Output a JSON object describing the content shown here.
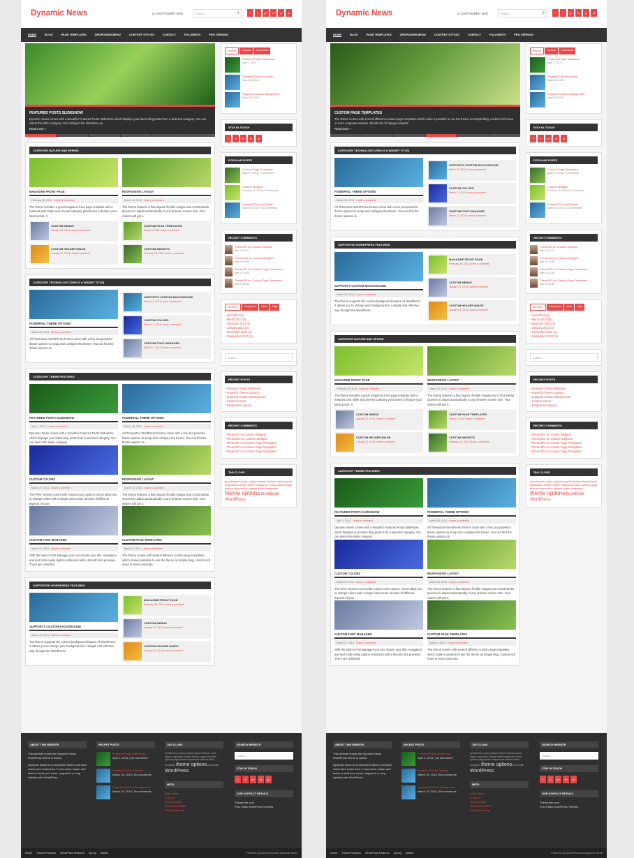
{
  "site": {
    "title": "Dynamic News",
    "tagline": "a cool header text",
    "search_placeholder": "Search ..."
  },
  "social": [
    "f",
    "t",
    "g+",
    "in",
    "p",
    "yt"
  ],
  "nav": [
    "HOME",
    "BLOG",
    "PAGE TEMPLATES",
    "DROPDOWN MENU",
    "CONTENT STYLES",
    "CONTACT",
    "FULLWIDTH",
    "PRO VERSION"
  ],
  "colors": {
    "accent": "#e84747",
    "dark": "#333333"
  },
  "meta_date": "March 31, 2014",
  "leave": "Leave a comment",
  "left": {
    "slider": {
      "title": "FEATURED POSTS SLIDESHOW",
      "text": "Dynamic News comes with a beautiful Featured Posts Slideshow which displays your latest blog posts from a selected category. You can select the slider category and configure the slideshow as",
      "more": "Read more »"
    },
    "cat1": {
      "title": "CATEGORY NATURE AND SPRING",
      "a": {
        "title": "MAGAZINE FRONT PAGE",
        "date": "February 28, 2014",
        "text": "The theme includes a great magazine front page template with a featured post slider and several category post boxes to feature your latest posts. It"
      },
      "b": {
        "title": "RESPONSIVE LAYOUT",
        "date": "March 31, 2014",
        "text": "The theme features a fluid layout, flexible images and CSS3 Media Queries to adjust automatically to any browser screen size. Your visitors will get a"
      },
      "small": [
        {
          "t": "CUSTOM MENUS",
          "d": "January 22, 2014"
        },
        {
          "t": "CUSTOM PAGE TEMPLATES",
          "d": "March 4, 2014"
        },
        {
          "t": "CUSTOM HEADER IMAGE",
          "d": "January 21, 2014"
        },
        {
          "t": "CUSTOM WIDGETS",
          "d": "February 16, 2014"
        }
      ]
    },
    "cat2": {
      "title": "CATEGORY TECHNOLOGY (THIS IS A WIDGET TITLE)",
      "a": {
        "title": "POWERFUL THEME OPTIONS",
        "date": "March 28, 2014",
        "text": "All ThemeZee WordPress themes come with a few, but powerful theme options to setup and configure the theme. You can find the theme options on"
      },
      "small": [
        {
          "t": "SUPPORTS CUSTOM BACKGROUND",
          "d": "March 19, 2014"
        },
        {
          "t": "CUSTOM COLORS",
          "d": "March 17, 2014"
        },
        {
          "t": "CUSTOM FONT MANAGER",
          "d": "March 11, 2014"
        }
      ]
    },
    "cat3": {
      "title": "CATEGORY THEME FEATURES",
      "rows": [
        [
          {
            "title": "FEATURED POSTS SLIDESHOW",
            "date": "April 1, 2014",
            "text": "Dynamic News comes with a beautiful Featured Posts Slideshow which displays your latest blog posts from a selected category. You can select the slider category"
          },
          {
            "title": "POWERFUL THEME OPTIONS",
            "date": "March 28, 2014",
            "text": "All ThemeZee WordPress themes come with a few, but powerful theme options to setup and configure the theme. You can find the theme options on"
          }
        ],
        [
          {
            "title": "CUSTOM COLORS",
            "date": "March 17, 2014",
            "text": "The PRO version comes with custom color options, which allow you to change colors with a single color picker function of different aspects of your"
          },
          {
            "title": "RESPONSIVE LAYOUT",
            "date": "March 31, 2014",
            "text": "The theme features a fluid layout, flexible images and CSS3 Media Queries to adjust automatically to any browser screen size. Your visitors will get a"
          }
        ],
        [
          {
            "title": "CUSTOM FONT MANAGER",
            "date": "March 11, 2014",
            "text": "With the built-in Font Manager you can choose your title, navigation and text fonts easily (option enhanced with a smooth font preview). There are unlimited"
          },
          {
            "title": "CUSTOM PAGE TEMPLATES",
            "date": "March 4, 2014",
            "text": "The theme comes with several different custom page templates which make it possible to use the theme as simple blog, content-rich news or even corporate"
          }
        ]
      ]
    },
    "cat4": {
      "title": "SUPPORTED WORDPRESS FEATURES",
      "a": {
        "title": "SUPPORTS CUSTOM BACKGROUND",
        "date": "March 19, 2014",
        "text": "The theme supports the custom background feature of WordPress. It allows you to change your background in a simple and effective way through the WordPress"
      },
      "small": [
        {
          "t": "MAGAZINE FRONT PAGE",
          "d": "February 28, 2014"
        },
        {
          "t": "CUSTOM MENUS",
          "d": "January 22, 2014"
        },
        {
          "t": "CUSTOM HEADER IMAGE",
          "d": "January 21, 2014"
        }
      ]
    }
  },
  "sidebar": {
    "tabs": [
      "Recent",
      "Popular",
      "Comments"
    ],
    "recent": [
      {
        "t": "Featured Posts Slideshow",
        "d": "April 1, 2014"
      },
      {
        "t": "Powerful Theme Options",
        "d": "March 28, 2014"
      },
      {
        "t": "Supports Custom Background",
        "d": "March 19, 2014"
      }
    ],
    "stay": "STAY IN TOUCH",
    "popular_title": "POPULAR POSTS",
    "popular": [
      {
        "t": "Custom Page Templates",
        "d": "March 4, 2014",
        "c": "3 Comments"
      },
      {
        "t": "Custom Widgets",
        "d": "February 16, 2014",
        "c": "3 Comments"
      },
      {
        "t": "Powerful Theme Options",
        "d": "March 28, 2014",
        "c": "No Comments"
      }
    ],
    "rc_title": "RECENT COMMENTS",
    "rc": [
      {
        "a": "ThemeZR",
        "p": "Custom Widgets",
        "d": "Mar 24 13:47"
      },
      {
        "a": "ThemeZee",
        "p": "Custom Widgets",
        "d": "Mar 24 13:48"
      },
      {
        "a": "ThemeZR",
        "p": "Custom Page Templates",
        "d": "Mar 24 13:48"
      },
      {
        "a": "ThemeZR",
        "p": "Custom Page Templates",
        "d": "Mar 24 13:48"
      }
    ],
    "atabs": [
      "Archives",
      "Categories",
      "Meta",
      "Tags"
    ],
    "archives": [
      "April 2014 (1)",
      "March 2014 (6)",
      "February 2014 (3)",
      "January 2014 (2)",
      "November 2013 (1)",
      "September 2013 (1)"
    ],
    "rp_title": "RECENT POSTS",
    "rp": [
      "Featured Posts Slideshow",
      "Powerful Theme Options",
      "Supports Custom Background",
      "Custom Colors",
      "Responsive Layout"
    ],
    "rc2_title": "RECENT COMMENTS",
    "rc2": [
      {
        "a": "ThemeZR",
        "p": "Custom Widgets"
      },
      {
        "a": "ThemeZee",
        "p": "Custom Widgets"
      },
      {
        "a": "ThemeZR",
        "p": "Custom Page Templates"
      },
      {
        "a": "ThemeZR",
        "p": "Custom Page Templates"
      },
      {
        "a": "ThemeZR",
        "p": "Custom Page Templates"
      }
    ],
    "tc_title": "TAG CLOUD",
    "tags_small": "architecture colors custom expert features fonts layout pagination design theme magazine news options page picture responsive sidebar slider templates",
    "tag_big": "theme options",
    "tag_mid": "thumbnail",
    "tag_wp": "WordPress"
  },
  "right": {
    "slider": {
      "title": "CUSTOM PAGE TEMPLATES",
      "text": "The theme comes with several different custom page templates which make it possible to use the theme as simple blog, content-rich news or even corporate website. Beside the frontpage template",
      "more": "Read more »"
    },
    "cat1": {
      "title": "CATEGORY TECHNOLOGY (THIS IS A WIDGET TITLE)",
      "a": {
        "title": "POWERFUL THEME OPTIONS",
        "date": "March 28, 2014",
        "text": "All ThemeZee WordPress themes come with a few, but powerful theme options to setup and configure the theme. You can find the theme options on"
      },
      "small": [
        {
          "t": "SUPPORTS CUSTOM BACKGROUND",
          "d": "March 19, 2014"
        },
        {
          "t": "CUSTOM COLORS",
          "d": "March 17, 2014"
        },
        {
          "t": "CUSTOM FONT MANAGER",
          "d": "March 11, 2014"
        }
      ]
    },
    "cat2": {
      "title": "SUPPORTED WORDPRESS FEATURES",
      "a": {
        "title": "SUPPORTS CUSTOM BACKGROUND",
        "date": "March 19, 2014",
        "text": "The theme supports the custom background feature of WordPress. It allows you to change your background in a simple and effective way through the WordPress"
      },
      "small": [
        {
          "t": "MAGAZINE FRONT PAGE",
          "d": "February 28, 2014"
        },
        {
          "t": "CUSTOM MENUS",
          "d": "January 22, 2014"
        },
        {
          "t": "CUSTOM HEADER IMAGE",
          "d": "January 21, 2014"
        }
      ]
    },
    "cat3": {
      "title": "CATEGORY NATURE AND SPRING",
      "a": {
        "title": "MAGAZINE FRONT PAGE",
        "date": "February 28, 2014",
        "text": "The theme includes a great magazine front page template with a featured post slider and several category post boxes to feature your latest posts. It"
      },
      "b": {
        "title": "RESPONSIVE LAYOUT",
        "date": "March 31, 2014",
        "text": "The theme features a fluid layout, flexible images and CSS3 Media Queries to adjust automatically to any browser screen size. Your visitors will get a"
      },
      "small": [
        {
          "t": "CUSTOM MENUS",
          "d": "January 22, 2014"
        },
        {
          "t": "CUSTOM PAGE TEMPLATES",
          "d": "March 4, 2014"
        },
        {
          "t": "CUSTOM HEADER IMAGE",
          "d": "January 21, 2014"
        },
        {
          "t": "CUSTOM WIDGETS",
          "d": "February 16, 2014"
        }
      ]
    }
  },
  "footer": {
    "about_title": "ABOUT THIS WEBSITE",
    "about_text": "This website shows the Dynamic News WordPress theme in action.",
    "about_text2": "Dynamic News is a responsive theme with bold colors and smart lines. It was never easier and faster to built your news, magazine or blog website with WordPress.",
    "rp_title": "RECENT POSTS",
    "rp": [
      {
        "t": "Featured Posts Slideshow",
        "d": "April 1, 2014 | No comments"
      },
      {
        "t": "Powerful Theme Options",
        "d": "March 28, 2014 | No comments"
      },
      {
        "t": "Supports Custom Background",
        "d": "March 19, 2014 | No comments"
      }
    ],
    "tc_title": "TAG CLOUD",
    "meta_title": "META",
    "meta": [
      "Site Admin",
      "Log out",
      "Entries RSS",
      "Comments RSS",
      "WordPress.org"
    ],
    "search_title": "SEARCH WEBSITE",
    "stay": "STAY IN TOUCH",
    "contact_title": "OUR CONTACT DETAILS",
    "contact_l1": "ThemeZee.com",
    "contact_l2": "First Class WordPress Themes"
  },
  "bottom": {
    "links": [
      "Home",
      "Theme Features",
      "WordPress Features",
      "Spring",
      "Nature"
    ],
    "powered": "Powered by WordPress and Dynamic News"
  }
}
